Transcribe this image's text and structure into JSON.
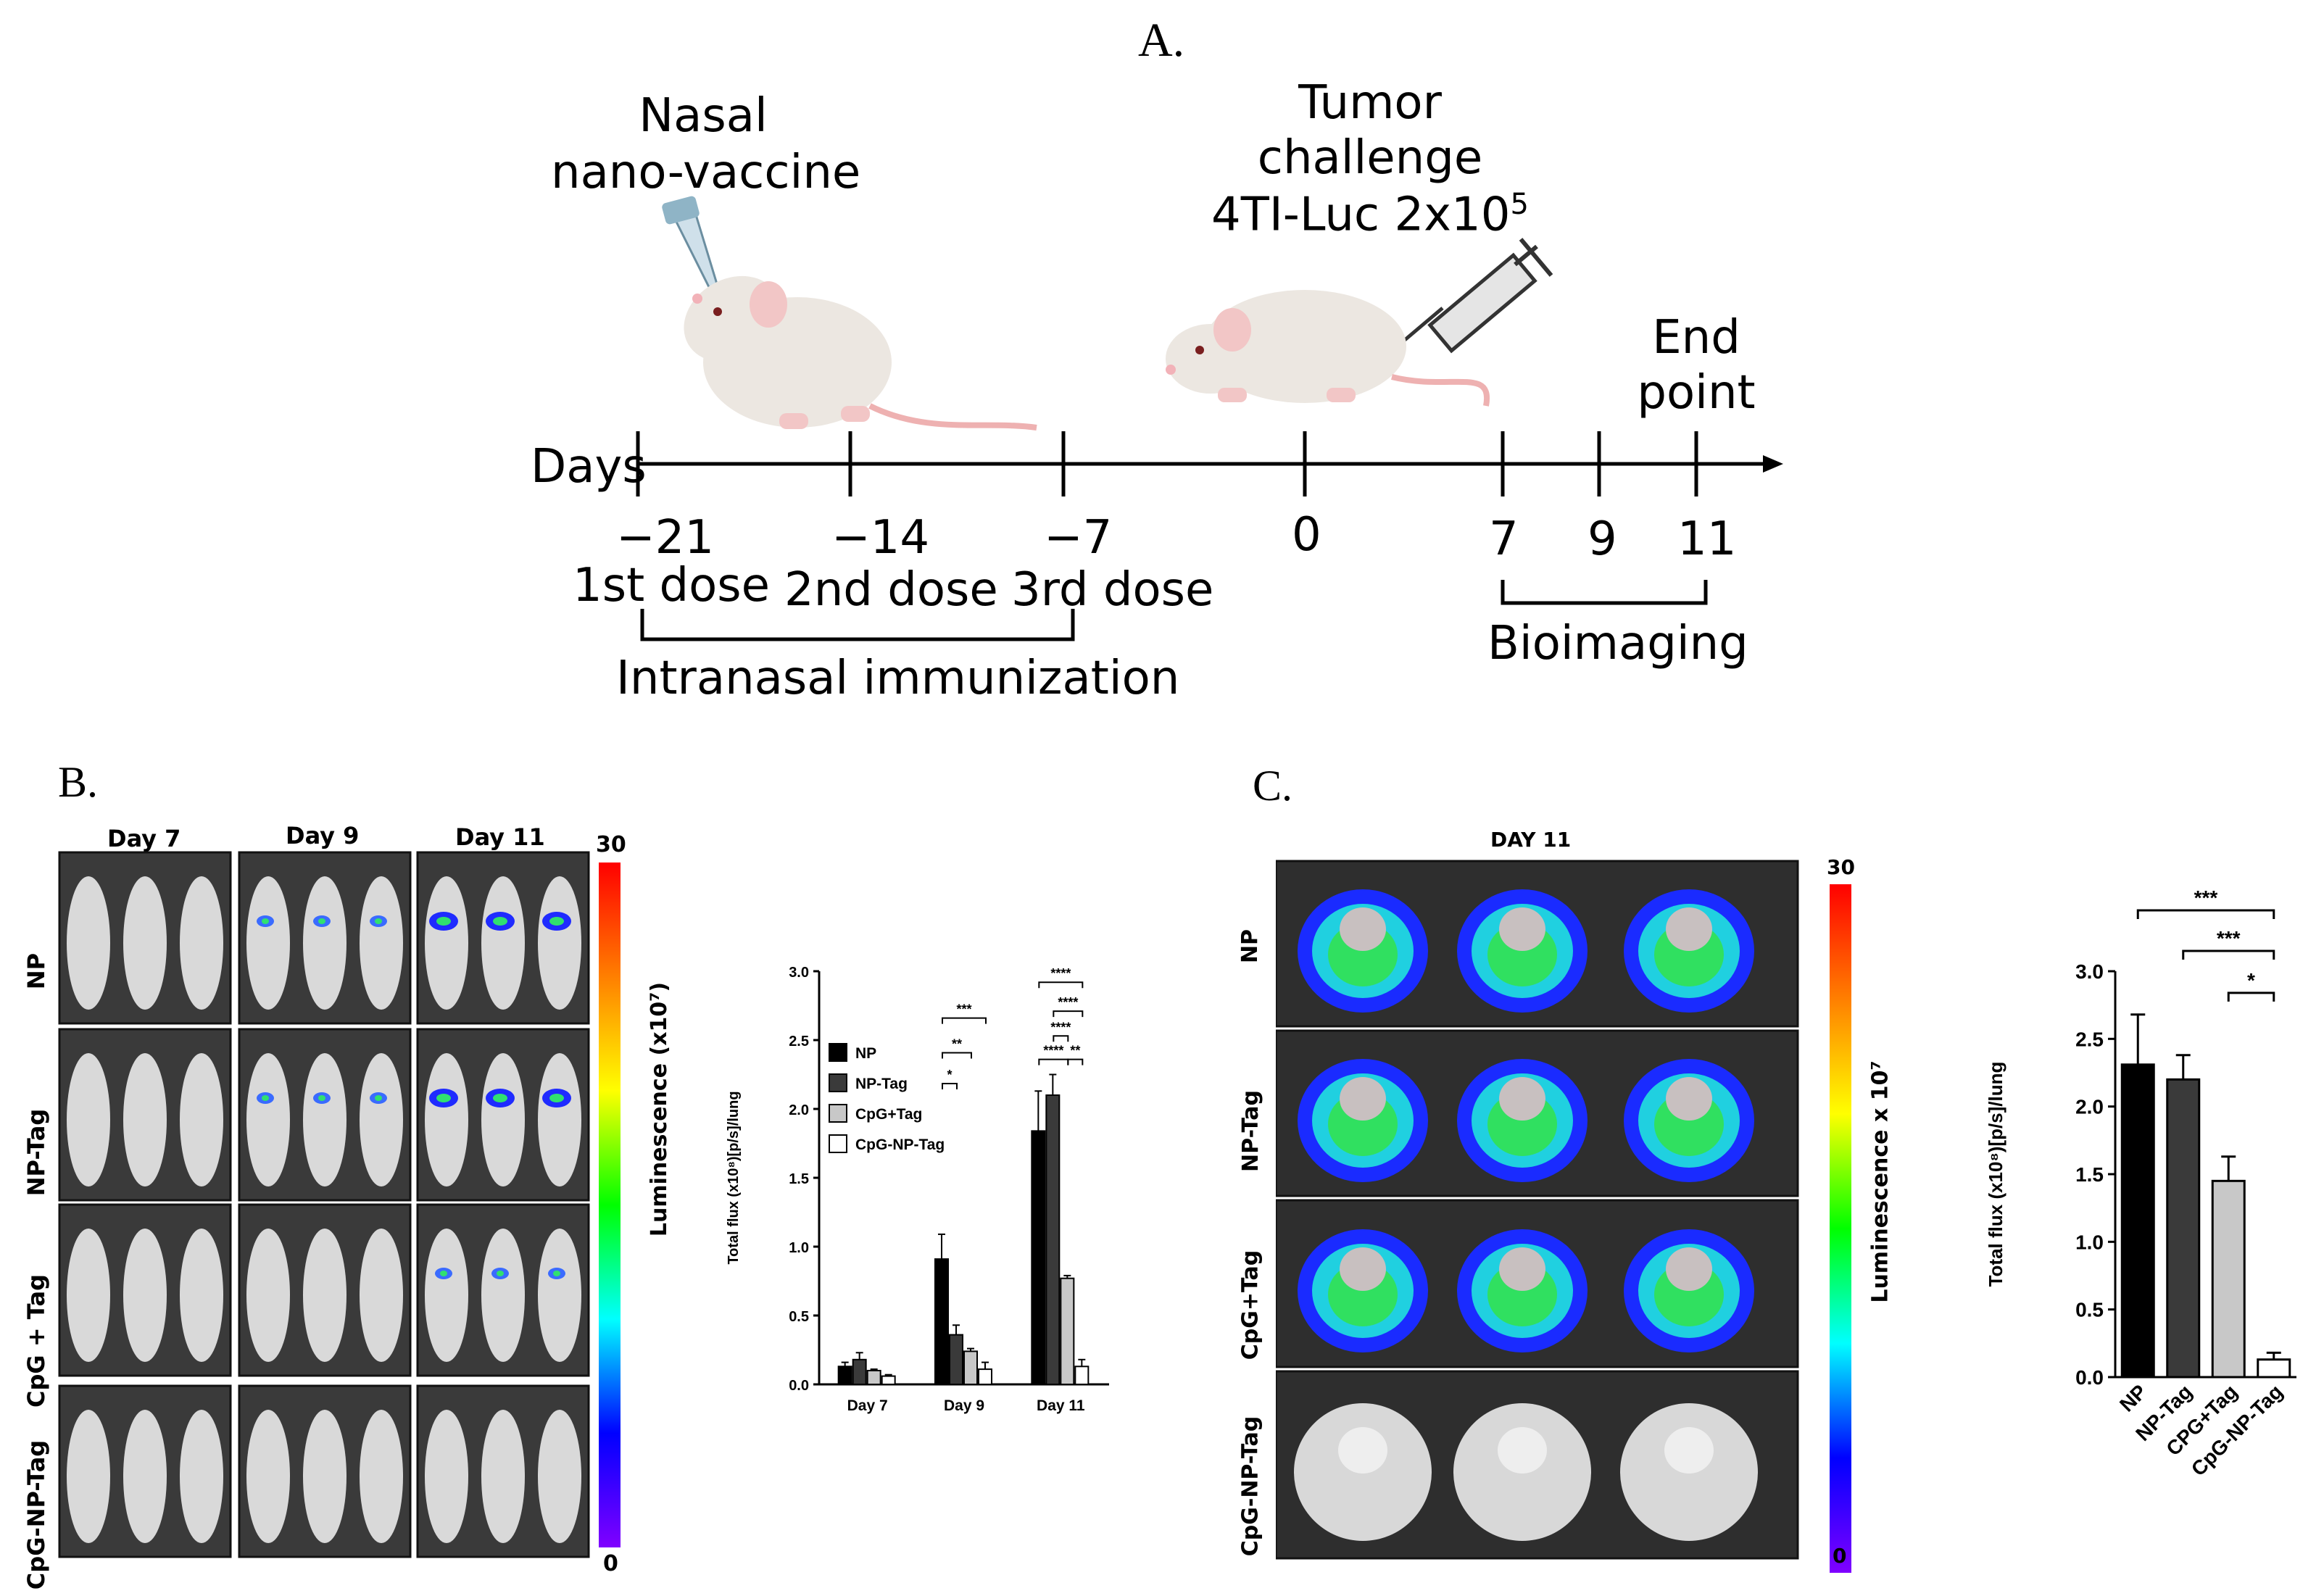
{
  "labels": {
    "a": "A.",
    "b": "B.",
    "c": "C."
  },
  "timeline": {
    "vaccine_title": [
      "Nasal",
      "nano-vaccine"
    ],
    "challenge_title": [
      "Tumor",
      "challenge"
    ],
    "challenge_cells": "4TI-Luc 2x10",
    "challenge_exp": "5",
    "endpoint": [
      "End",
      "point"
    ],
    "axis_label": "Days",
    "days": [
      "−21",
      "−14",
      "−7",
      "0",
      "7",
      "9",
      "11"
    ],
    "doses": [
      "1st dose",
      "2nd dose",
      "3rd dose"
    ],
    "immunization": "Intranasal immunization",
    "bioimaging": "Bioimaging"
  },
  "panel_b": {
    "day_headers": [
      "Day 7",
      "Day 9",
      "Day 11"
    ],
    "row_labels": [
      "NP",
      "NP-Tag",
      "CpG + Tag",
      "CpG-NP-Tag"
    ],
    "colorbar": {
      "max": "30",
      "min": "0",
      "label": "Luminescence (x10⁷)"
    }
  },
  "panel_c": {
    "title": "DAY 11",
    "row_labels": [
      "NP",
      "NP-Tag",
      "CpG+Tag",
      "CpG-NP-Tag"
    ],
    "colorbar": {
      "max": "30",
      "min": "0",
      "label": "Luminescence x 10⁷"
    }
  },
  "chart_data": [
    {
      "type": "bar",
      "categories": [
        "Day 7",
        "Day 9",
        "Day 11"
      ],
      "series": [
        {
          "name": "NP",
          "color": "#000000",
          "values": [
            0.13,
            0.91,
            1.84
          ],
          "errors": [
            0.03,
            0.18,
            0.29
          ]
        },
        {
          "name": "NP-Tag",
          "color": "#3a3a3a",
          "values": [
            0.18,
            0.36,
            2.1
          ],
          "errors": [
            0.05,
            0.07,
            0.15
          ]
        },
        {
          "name": "CpG+Tag",
          "color": "#c8c8c8",
          "values": [
            0.1,
            0.24,
            0.77
          ],
          "errors": [
            0.01,
            0.02,
            0.02
          ]
        },
        {
          "name": "CpG-NP-Tag",
          "color": "#ffffff",
          "values": [
            0.06,
            0.11,
            0.13
          ],
          "errors": [
            0.01,
            0.05,
            0.05
          ]
        }
      ],
      "ylabel": "Total flux (x10⁸)[p/s]/lung",
      "ylim": [
        0,
        3.0
      ],
      "yticks": [
        "0.0",
        "0.5",
        "1.0",
        "1.5",
        "2.0",
        "2.5",
        "3.0"
      ],
      "legend_position": "upper-left",
      "significance": [
        {
          "group": "Day 9",
          "marks": [
            "*",
            "**",
            "***"
          ]
        },
        {
          "group": "Day 11",
          "marks": [
            "****",
            "**",
            "****",
            "****",
            "****"
          ]
        }
      ]
    },
    {
      "type": "bar",
      "categories": [
        "NP",
        "NP-Tag",
        "CPG+Tag",
        "CpG-NP-Tag"
      ],
      "values": [
        2.31,
        2.2,
        1.45,
        0.13
      ],
      "errors": [
        0.37,
        0.18,
        0.18,
        0.05
      ],
      "colors": [
        "#000000",
        "#3a3a3a",
        "#c8c8c8",
        "#ffffff"
      ],
      "ylabel": "Total flux (x10⁸)[p/s]/lung",
      "ylim": [
        0,
        3.0
      ],
      "yticks": [
        "0.0",
        "0.5",
        "1.0",
        "1.5",
        "2.0",
        "2.5",
        "3.0"
      ],
      "significance": [
        {
          "pair": [
            "NP",
            "CpG-NP-Tag"
          ],
          "mark": "***"
        },
        {
          "pair": [
            "NP-Tag",
            "CpG-NP-Tag"
          ],
          "mark": "***"
        },
        {
          "pair": [
            "CPG+Tag",
            "CpG-NP-Tag"
          ],
          "mark": "*"
        }
      ]
    }
  ]
}
